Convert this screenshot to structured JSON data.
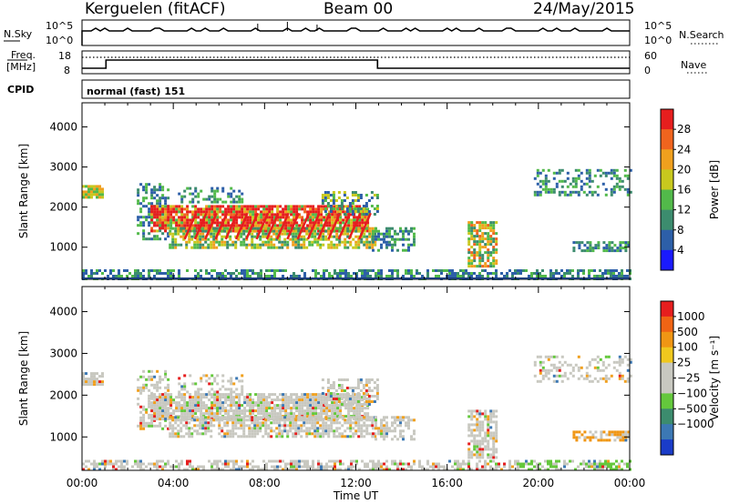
{
  "header": {
    "station": "Kerguelen (fitACF)",
    "beam": "Beam 00",
    "date": "24/May/2015"
  },
  "nsky_panel": {
    "label": "N.Sky",
    "right_label": "N.Search",
    "left_ticks": [
      "10^5",
      "10^0"
    ],
    "right_ticks": [
      "10^5",
      "10^0"
    ]
  },
  "freq_panel": {
    "label_top": "Freq.",
    "label_unit": "[MHz]",
    "right_label": "Nave",
    "left_ticks": [
      "18",
      "8"
    ],
    "right_ticks": [
      "60",
      "0"
    ]
  },
  "cpid": {
    "label": "CPID",
    "mode": "normal (fast) 151"
  },
  "chart_data": [
    {
      "type": "heatmap",
      "name": "Power",
      "ylabel": "Slant Range [km]",
      "yticks": [
        1000,
        2000,
        3000,
        4000
      ],
      "ylim": [
        200,
        4600
      ],
      "xlim": [
        0,
        24
      ],
      "colorbar_label": "Power [dB]",
      "colorbar_ticks": [
        "4",
        "8",
        "12",
        "16",
        "20",
        "24",
        "28"
      ],
      "colorbar_range": [
        0,
        32
      ],
      "colors": [
        "#1a1aff",
        "#2d5fa8",
        "#3c8c6e",
        "#52b94a",
        "#c8c81e",
        "#f0a01e",
        "#f0641e",
        "#e61e1e"
      ]
    },
    {
      "type": "heatmap",
      "name": "Velocity",
      "ylabel": "Slant Range [km]",
      "yticks": [
        1000,
        2000,
        3000,
        4000
      ],
      "ylim": [
        200,
        4600
      ],
      "xlim": [
        0,
        24
      ],
      "xlabel": "Time UT",
      "xticks": [
        "00:00",
        "04:00",
        "08:00",
        "12:00",
        "16:00",
        "20:00",
        "00:00"
      ],
      "colorbar_label": "Velocity [m s⁻¹]",
      "colorbar_ticks": [
        "1000",
        "500",
        "100",
        "25",
        "−25",
        "−100",
        "−500",
        "−1000"
      ],
      "colors": [
        "#1a3cc8",
        "#3c78b4",
        "#3c8c6e",
        "#64c83c",
        "#c8c8c0",
        "#c8c8c0",
        "#f0c81e",
        "#f09614",
        "#f06414",
        "#e61e1e"
      ]
    }
  ]
}
